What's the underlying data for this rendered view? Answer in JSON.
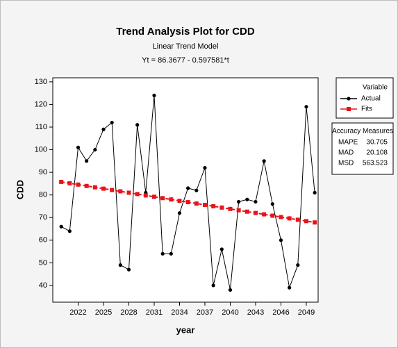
{
  "chart_data": {
    "type": "line",
    "title": "Trend Analysis Plot for CDD",
    "subtitle": "Linear Trend Model",
    "equation": "Yt = 86.3677 - 0.597581*t",
    "x_label": "year",
    "y_label": "CDD",
    "x": [
      2020,
      2021,
      2022,
      2023,
      2024,
      2025,
      2026,
      2027,
      2028,
      2029,
      2030,
      2031,
      2032,
      2033,
      2034,
      2035,
      2036,
      2037,
      2038,
      2039,
      2040,
      2041,
      2042,
      2043,
      2044,
      2045,
      2046,
      2047,
      2048,
      2049,
      2050
    ],
    "xlim": [
      2019.0,
      2050.4
    ],
    "xticks": [
      2022,
      2025,
      2028,
      2031,
      2034,
      2037,
      2040,
      2043,
      2046,
      2049
    ],
    "ylim": [
      32.6,
      131.8
    ],
    "yticks": [
      40,
      50,
      60,
      70,
      80,
      90,
      100,
      110,
      120,
      130
    ],
    "legend_title": "Variable",
    "series": [
      {
        "name": "Actual",
        "color": "#000000",
        "marker": "circle",
        "values": [
          66,
          64,
          101,
          95,
          100,
          109,
          112,
          49,
          47,
          111,
          81,
          124,
          54,
          54,
          72,
          83,
          82,
          92,
          40,
          56,
          38,
          77,
          78,
          77,
          95,
          76,
          60,
          39,
          49,
          119,
          81
        ]
      },
      {
        "name": "Fits",
        "color": "#e8141b",
        "marker": "square",
        "values": [
          85.77,
          85.17,
          84.58,
          83.98,
          83.38,
          82.78,
          82.18,
          81.59,
          80.99,
          80.39,
          79.79,
          79.2,
          78.6,
          78.0,
          77.4,
          76.81,
          76.21,
          75.61,
          75.01,
          74.42,
          73.82,
          73.22,
          72.62,
          72.03,
          71.43,
          70.83,
          70.23,
          69.64,
          69.04,
          68.44,
          67.84
        ]
      }
    ],
    "accuracy": {
      "title": "Accuracy Measures",
      "measures": [
        {
          "name": "MAPE",
          "value": 30.705
        },
        {
          "name": "MAD",
          "value": 20.108
        },
        {
          "name": "MSD",
          "value": 563.523
        }
      ]
    }
  }
}
